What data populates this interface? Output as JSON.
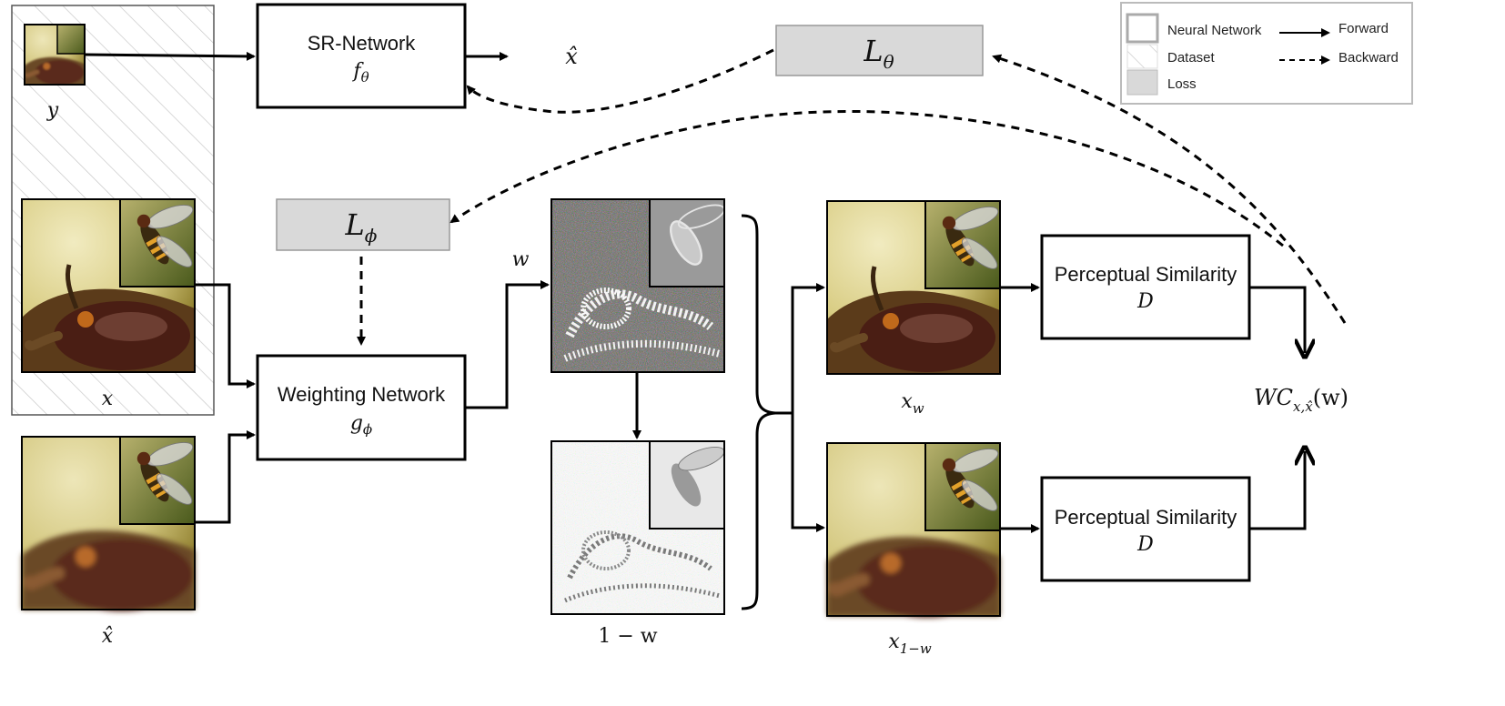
{
  "nodes": {
    "sr_network": {
      "title": "SR-Network",
      "symbol": "f",
      "sub": "θ"
    },
    "weighting_network": {
      "title": "Weighting Network",
      "symbol": "g",
      "sub": "ϕ"
    },
    "perceptual_top": {
      "title": "Perceptual Similarity",
      "symbol": "D"
    },
    "perceptual_bottom": {
      "title": "Perceptual Similarity",
      "symbol": "D"
    },
    "loss_theta": {
      "symbol": "L",
      "sub": "θ"
    },
    "loss_phi": {
      "symbol": "L",
      "sub": "ϕ"
    }
  },
  "labels": {
    "y": "y",
    "x": "x",
    "x_hat": "x̂",
    "x_hat_out": "x̂",
    "w": "w",
    "one_minus_w": "1 − w",
    "x_w": "x",
    "x_w_sub": "w",
    "x_1mw": "x",
    "x_1mw_sub": "1−w",
    "wc": "WC",
    "wc_sub": "x,x̂",
    "wc_arg": "(w)"
  },
  "legend": {
    "neural_network": "Neural Network",
    "dataset": "Dataset",
    "loss": "Loss",
    "forward": "Forward",
    "backward": "Backward"
  }
}
